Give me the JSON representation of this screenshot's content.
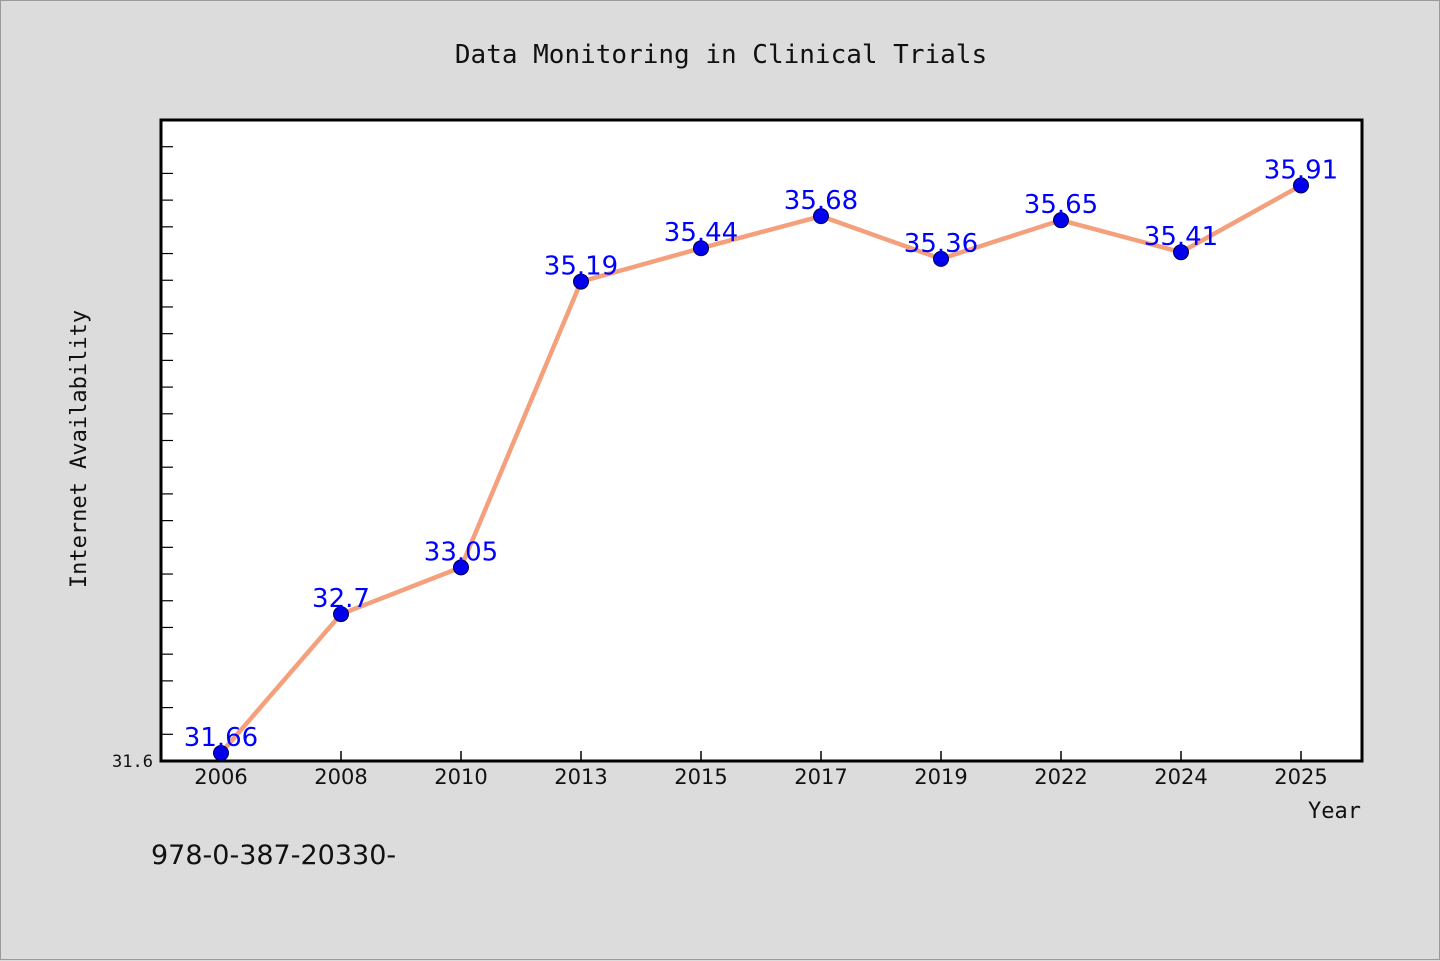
{
  "chart_data": {
    "type": "line",
    "title": "Data Monitoring in Clinical Trials",
    "xlabel": "Year",
    "ylabel": "Internet Availability",
    "categories": [
      "2006",
      "2008",
      "2010",
      "2013",
      "2015",
      "2017",
      "2019",
      "2022",
      "2024",
      "2025"
    ],
    "series": [
      {
        "values": [
          31.66,
          32.7,
          33.05,
          35.19,
          35.44,
          35.68,
          35.36,
          35.65,
          35.41,
          35.91
        ],
        "labels": [
          "31.66",
          "32.7",
          "33.05",
          "35.19",
          "35.44",
          "35.68",
          "35.36",
          "35.65",
          "35.41",
          "35.91"
        ],
        "line_color": "#f4a07c",
        "marker_color": "#0000ee"
      }
    ],
    "ylim": [
      31.6,
      36.4
    ],
    "y_tick_labels": [
      {
        "value": 31.6,
        "label": "31.6"
      }
    ],
    "grid": false,
    "legend": "none"
  },
  "caption": "978-0-387-20330-",
  "colors": {
    "background": "#dcdcdc",
    "plot_background": "#ffffff",
    "data_label": "#0000ff"
  }
}
